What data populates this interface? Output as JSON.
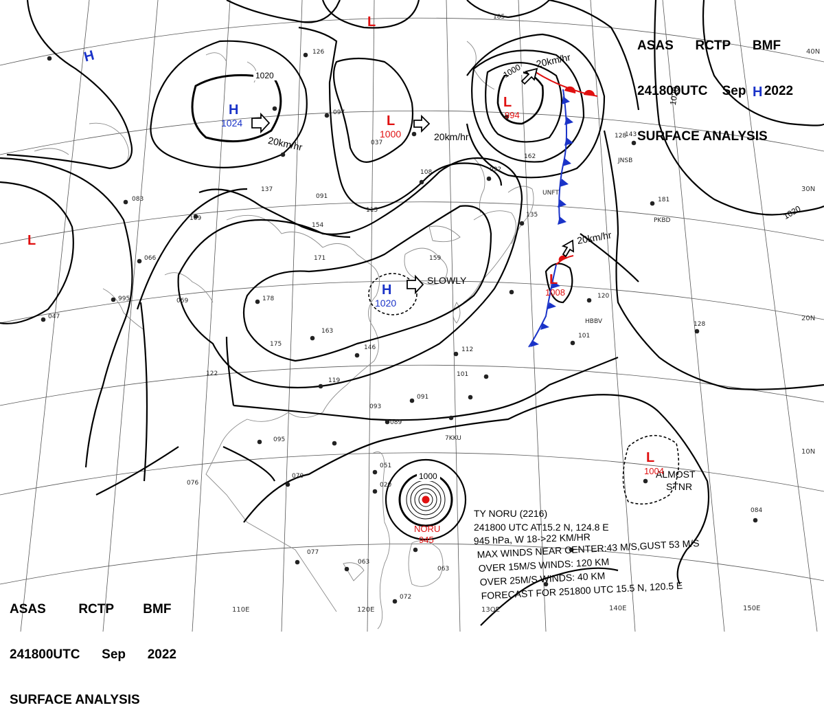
{
  "header": {
    "line1_parts": [
      "ASAS",
      "RCTP",
      "BMF"
    ],
    "line2_parts": [
      "241800UTC",
      "Sep",
      "2022"
    ],
    "line3": "SURFACE ANALYSIS"
  },
  "grid": {
    "lat_labels": [
      "40N",
      "30N",
      "20N",
      "10N"
    ],
    "lon_labels": [
      "110E",
      "120E",
      "13OE",
      "140E",
      "150E"
    ]
  },
  "colors": {
    "high": "#1a33c8",
    "low": "#e01010",
    "cold_front": "#1a33c8",
    "warm_front": "#e01010",
    "isobar": "#000000",
    "coast": "#808080",
    "grid": "#555555"
  },
  "pressure_systems": [
    {
      "type": "H",
      "value": "1024",
      "name": "high-west"
    },
    {
      "type": "H",
      "value": "",
      "name": "high-northwest"
    },
    {
      "type": "H",
      "value": "",
      "name": "high-east"
    },
    {
      "type": "H",
      "value": "1020",
      "name": "high-china"
    },
    {
      "type": "L",
      "value": "",
      "name": "low-north"
    },
    {
      "type": "L",
      "value": "1000",
      "name": "low-mongolia"
    },
    {
      "type": "L",
      "value": "994",
      "name": "low-kamchatka"
    },
    {
      "type": "L",
      "value": "",
      "name": "low-west-edge"
    },
    {
      "type": "L",
      "value": "1008",
      "name": "low-front"
    },
    {
      "type": "L",
      "value": "1004",
      "name": "low-pacific"
    }
  ],
  "isobar_labels": [
    "1020",
    "1000",
    "1020",
    "1020",
    "1000"
  ],
  "motion_labels": [
    "20km/hr",
    "20km/hr",
    "20km/hr",
    "20km/hr",
    "SLOWLY",
    "ALMOST",
    "STNR"
  ],
  "typhoon": {
    "name_label": "NORU",
    "pressure_label": "945",
    "info": [
      "TY  NORU  (2216)",
      "241800 UTC  AT15.2 N, 124.8 E",
      "945 hPa, W  18->22 KM/HR",
      "MAX WINDS NEAR CENTER:43 M/S,GUST 53 M/S",
      "OVER 15M/S WINDS: 120 KM",
      "OVER 25M/S WINDS: 40 KM",
      "FORECAST FOR 251800 UTC 15.5 N, 120.5 E"
    ]
  },
  "station_codes": [
    "JNSB",
    "PKBD",
    "HBBV",
    "UNFT",
    "7KKU"
  ],
  "station_numbers": [
    "126",
    "097",
    "037",
    "108",
    "092",
    "137",
    "091",
    "154",
    "171",
    "159",
    "163",
    "178",
    "175",
    "146",
    "112",
    "101",
    "119",
    "091",
    "089",
    "093",
    "066",
    "995",
    "069",
    "047",
    "083",
    "109",
    "122",
    "095",
    "076",
    "070",
    "077",
    "063",
    "051",
    "020",
    "072",
    "143",
    "181",
    "120",
    "128",
    "101",
    "084",
    "185",
    "128",
    "162",
    "115",
    "135",
    "063"
  ]
}
